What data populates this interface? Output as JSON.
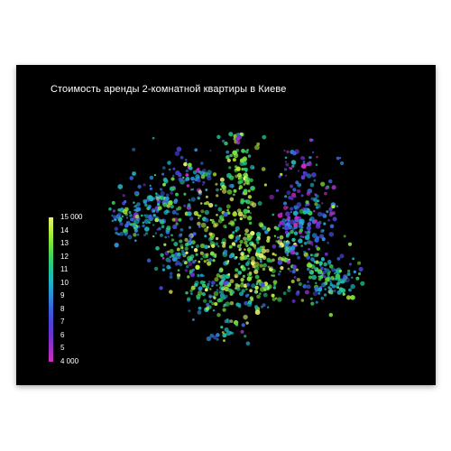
{
  "map": {
    "title": "Стоимость аренды 2-комнатной квартиры в Киеве",
    "legend": {
      "labels": [
        "15 000",
        "14",
        "13",
        "12",
        "11",
        "10",
        "9",
        "8",
        "7",
        "6",
        "5",
        "4 000"
      ],
      "color_high": "#e7f36a",
      "color_mid": "#22c495",
      "color_low": "#d02bc0"
    },
    "background_color": "#000000",
    "marker_type": "dot-cluster"
  }
}
